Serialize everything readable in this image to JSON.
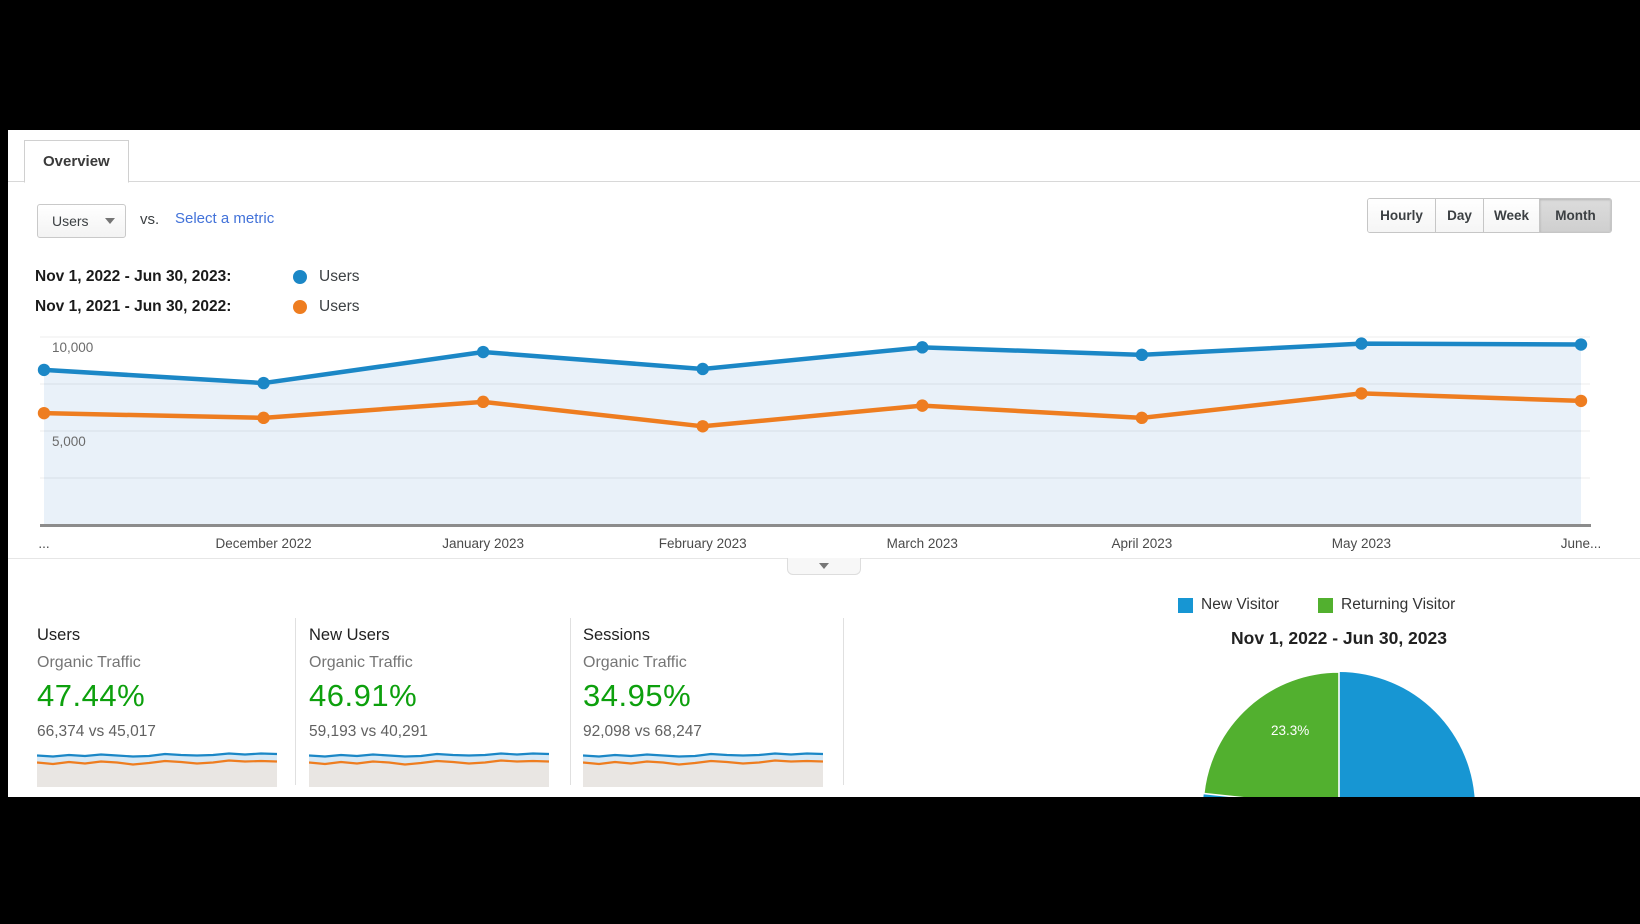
{
  "tab": {
    "label": "Overview"
  },
  "controls": {
    "metric_selector_value": "Users",
    "vs_label": "vs.",
    "select_metric_label": "Select a metric",
    "granularity_options": [
      "Hourly",
      "Day",
      "Week",
      "Month"
    ],
    "granularity_selected": "Month"
  },
  "series_legend": [
    {
      "range": "Nov 1, 2022 - Jun 30, 2023:",
      "metric": "Users",
      "color": "#1b87c6"
    },
    {
      "range": "Nov 1, 2021 - Jun 30, 2022:",
      "metric": "Users",
      "color": "#ee7d20"
    }
  ],
  "chart_data": [
    {
      "type": "line",
      "title": "Users by month, current vs previous period",
      "x_labels": [
        "...",
        "December 2022",
        "January 2023",
        "February 2023",
        "March 2023",
        "April 2023",
        "May 2023",
        "June..."
      ],
      "series": [
        {
          "name": "Users (Nov 1, 2022 - Jun 30, 2023)",
          "color": "#1b87c6",
          "values": [
            8250,
            7550,
            9200,
            8300,
            9450,
            9050,
            9650,
            9600
          ]
        },
        {
          "name": "Users (Nov 1, 2021 - Jun 30, 2022)",
          "color": "#ee7d20",
          "values": [
            5950,
            5700,
            6550,
            5250,
            6350,
            5700,
            7000,
            6600
          ]
        }
      ],
      "ylim": [
        0,
        10905
      ],
      "yticks": [
        2500,
        5000,
        7500,
        10000
      ],
      "ytick_labels": {
        "5000": "5,000",
        "10000": "10,000"
      },
      "grid": true,
      "legend_position": "top-left",
      "area_fill_color": "#e9f1f9",
      "axis_color": "#8c8c8c"
    },
    {
      "type": "pie",
      "title": "Nov 1, 2022 - Jun 30, 2023",
      "legend": [
        "New Visitor",
        "Returning Visitor"
      ],
      "slices": [
        {
          "label": "New Visitor",
          "value": 76.7,
          "color": "#1796d3",
          "display_label": ""
        },
        {
          "label": "Returning Visitor",
          "value": 23.3,
          "color": "#52b02f",
          "display_label": "23.3%"
        }
      ]
    }
  ],
  "cards": [
    {
      "metric": "Users",
      "segment": "Organic Traffic",
      "change_percent": "47.44%",
      "comparison": "66,374 vs 45,017"
    },
    {
      "metric": "New Users",
      "segment": "Organic Traffic",
      "change_percent": "46.91%",
      "comparison": "59,193 vs 40,291"
    },
    {
      "metric": "Sessions",
      "segment": "Organic Traffic",
      "change_percent": "34.95%",
      "comparison": "92,098 vs 68,247"
    }
  ],
  "sparkline": {
    "blue_y": [
      6.5,
      7.5,
      6,
      7,
      5.5,
      6.5,
      7.5,
      7,
      5,
      6,
      6.5,
      6,
      4.5,
      5.5,
      4.5,
      5
    ],
    "orange_y": [
      13.5,
      15,
      13,
      14.5,
      12.5,
      13.5,
      15.5,
      14,
      12,
      13,
      14.5,
      13.5,
      11.5,
      12.5,
      12,
      12.5
    ],
    "band_fill": "#d7e9f6",
    "base_fill": "#e9e6e3"
  },
  "colors": {
    "line_blue": "#1b87c6",
    "line_orange": "#ee7d20",
    "pie_blue": "#1796d3",
    "pie_green": "#52b02f",
    "positive_green": "#0da00d",
    "link_blue": "#4272d9"
  }
}
